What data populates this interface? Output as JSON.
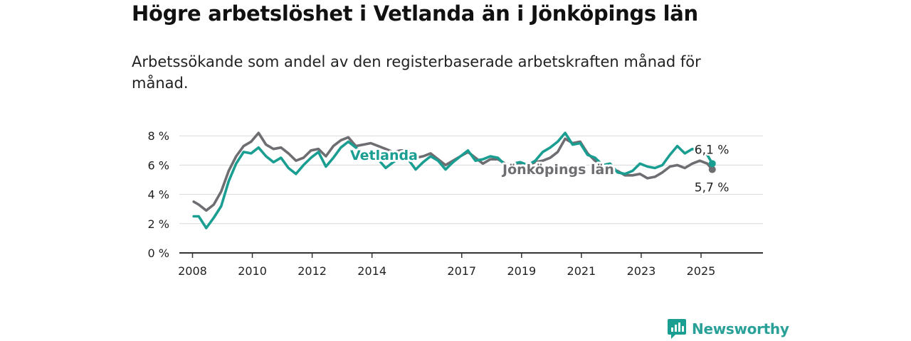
{
  "title": "Högre arbetslöshet i Vetlanda än i Jönköpings län",
  "subtitle": "Arbetssökande som andel av den registerbaserade arbetskraften månad för månad.",
  "brand": {
    "name": "Newsworthy",
    "color": "#1a9e92"
  },
  "colors": {
    "vetlanda": "#1a9e92",
    "lan": "#6e6e72",
    "grid": "#d9d9d9",
    "axis": "#333333"
  },
  "chart_data": {
    "type": "line",
    "x_ticks": [
      "2008",
      "2010",
      "2012",
      "2014",
      "2017",
      "2019",
      "2021",
      "2023",
      "2025"
    ],
    "y_ticks": [
      "0 %",
      "2 %",
      "4 %",
      "6 %",
      "8 %"
    ],
    "ylim": [
      0,
      8.5
    ],
    "grid": true,
    "series": [
      {
        "name": "Jönköpings län",
        "end_label": "5,7 %",
        "points": [
          [
            "2008-01",
            3.5
          ],
          [
            "2008-03",
            3.3
          ],
          [
            "2008-06",
            2.9
          ],
          [
            "2008-09",
            3.3
          ],
          [
            "2008-12",
            4.2
          ],
          [
            "2009-03",
            5.6
          ],
          [
            "2009-06",
            6.6
          ],
          [
            "2009-09",
            7.3
          ],
          [
            "2009-12",
            7.6
          ],
          [
            "2010-03",
            8.2
          ],
          [
            "2010-06",
            7.4
          ],
          [
            "2010-09",
            7.1
          ],
          [
            "2010-12",
            7.2
          ],
          [
            "2011-03",
            6.8
          ],
          [
            "2011-06",
            6.3
          ],
          [
            "2011-09",
            6.5
          ],
          [
            "2011-12",
            7.0
          ],
          [
            "2012-03",
            7.1
          ],
          [
            "2012-06",
            6.6
          ],
          [
            "2012-09",
            7.3
          ],
          [
            "2012-12",
            7.7
          ],
          [
            "2013-03",
            7.9
          ],
          [
            "2013-06",
            7.3
          ],
          [
            "2013-09",
            7.4
          ],
          [
            "2013-12",
            7.5
          ],
          [
            "2014-03",
            7.3
          ],
          [
            "2014-06",
            7.1
          ],
          [
            "2014-09",
            6.9
          ],
          [
            "2014-12",
            7.0
          ],
          [
            "2015-03",
            7.0
          ],
          [
            "2015-06",
            6.5
          ],
          [
            "2015-09",
            6.6
          ],
          [
            "2015-12",
            6.8
          ],
          [
            "2016-03",
            6.4
          ],
          [
            "2016-06",
            6.0
          ],
          [
            "2016-09",
            6.3
          ],
          [
            "2016-12",
            6.6
          ],
          [
            "2017-03",
            6.9
          ],
          [
            "2017-06",
            6.5
          ],
          [
            "2017-09",
            6.1
          ],
          [
            "2017-12",
            6.4
          ],
          [
            "2018-03",
            6.4
          ],
          [
            "2018-06",
            6.1
          ],
          [
            "2018-09",
            6.0
          ],
          [
            "2018-12",
            6.1
          ],
          [
            "2019-03",
            6.0
          ],
          [
            "2019-06",
            6.2
          ],
          [
            "2019-09",
            6.3
          ],
          [
            "2019-12",
            6.5
          ],
          [
            "2020-03",
            6.9
          ],
          [
            "2020-06",
            7.8
          ],
          [
            "2020-09",
            7.5
          ],
          [
            "2020-12",
            7.6
          ],
          [
            "2021-03",
            6.8
          ],
          [
            "2021-06",
            6.3
          ],
          [
            "2021-09",
            5.9
          ],
          [
            "2021-12",
            5.7
          ],
          [
            "2022-03",
            5.6
          ],
          [
            "2022-06",
            5.3
          ],
          [
            "2022-09",
            5.3
          ],
          [
            "2022-12",
            5.4
          ],
          [
            "2023-03",
            5.1
          ],
          [
            "2023-06",
            5.2
          ],
          [
            "2023-09",
            5.5
          ],
          [
            "2023-12",
            5.9
          ],
          [
            "2024-03",
            6.0
          ],
          [
            "2024-06",
            5.8
          ],
          [
            "2024-09",
            6.1
          ],
          [
            "2024-12",
            6.3
          ],
          [
            "2025-03",
            6.1
          ],
          [
            "2025-05",
            5.7
          ]
        ]
      },
      {
        "name": "Vetlanda",
        "end_label": "6,1 %",
        "points": [
          [
            "2008-01",
            2.5
          ],
          [
            "2008-03",
            2.5
          ],
          [
            "2008-06",
            1.7
          ],
          [
            "2008-09",
            2.4
          ],
          [
            "2008-12",
            3.2
          ],
          [
            "2009-03",
            4.9
          ],
          [
            "2009-06",
            6.1
          ],
          [
            "2009-09",
            6.9
          ],
          [
            "2009-12",
            6.8
          ],
          [
            "2010-03",
            7.2
          ],
          [
            "2010-06",
            6.6
          ],
          [
            "2010-09",
            6.2
          ],
          [
            "2010-12",
            6.5
          ],
          [
            "2011-03",
            5.8
          ],
          [
            "2011-06",
            5.4
          ],
          [
            "2011-09",
            6.0
          ],
          [
            "2011-12",
            6.5
          ],
          [
            "2012-03",
            6.9
          ],
          [
            "2012-06",
            5.9
          ],
          [
            "2012-09",
            6.5
          ],
          [
            "2012-12",
            7.2
          ],
          [
            "2013-03",
            7.6
          ],
          [
            "2013-06",
            7.2
          ],
          [
            "2013-09",
            6.8
          ],
          [
            "2013-12",
            6.9
          ],
          [
            "2014-03",
            6.4
          ],
          [
            "2014-06",
            5.8
          ],
          [
            "2014-09",
            6.2
          ],
          [
            "2014-12",
            6.5
          ],
          [
            "2015-03",
            6.4
          ],
          [
            "2015-06",
            5.7
          ],
          [
            "2015-09",
            6.2
          ],
          [
            "2015-12",
            6.6
          ],
          [
            "2016-03",
            6.3
          ],
          [
            "2016-06",
            5.7
          ],
          [
            "2016-09",
            6.2
          ],
          [
            "2016-12",
            6.6
          ],
          [
            "2017-03",
            7.0
          ],
          [
            "2017-06",
            6.3
          ],
          [
            "2017-09",
            6.4
          ],
          [
            "2017-12",
            6.6
          ],
          [
            "2018-03",
            6.5
          ],
          [
            "2018-06",
            6.0
          ],
          [
            "2018-09",
            6.1
          ],
          [
            "2018-12",
            6.2
          ],
          [
            "2019-03",
            6.0
          ],
          [
            "2019-06",
            6.3
          ],
          [
            "2019-09",
            6.9
          ],
          [
            "2019-12",
            7.2
          ],
          [
            "2020-03",
            7.6
          ],
          [
            "2020-06",
            8.2
          ],
          [
            "2020-09",
            7.4
          ],
          [
            "2020-12",
            7.5
          ],
          [
            "2021-03",
            6.7
          ],
          [
            "2021-06",
            6.5
          ],
          [
            "2021-09",
            6.0
          ],
          [
            "2021-12",
            6.1
          ],
          [
            "2022-03",
            5.5
          ],
          [
            "2022-06",
            5.4
          ],
          [
            "2022-09",
            5.6
          ],
          [
            "2022-12",
            6.1
          ],
          [
            "2023-03",
            5.9
          ],
          [
            "2023-06",
            5.8
          ],
          [
            "2023-09",
            6.0
          ],
          [
            "2023-12",
            6.7
          ],
          [
            "2024-03",
            7.3
          ],
          [
            "2024-06",
            6.8
          ],
          [
            "2024-09",
            7.1
          ],
          [
            "2024-12",
            7.0
          ],
          [
            "2025-03",
            6.7
          ],
          [
            "2025-05",
            6.1
          ]
        ]
      }
    ]
  }
}
